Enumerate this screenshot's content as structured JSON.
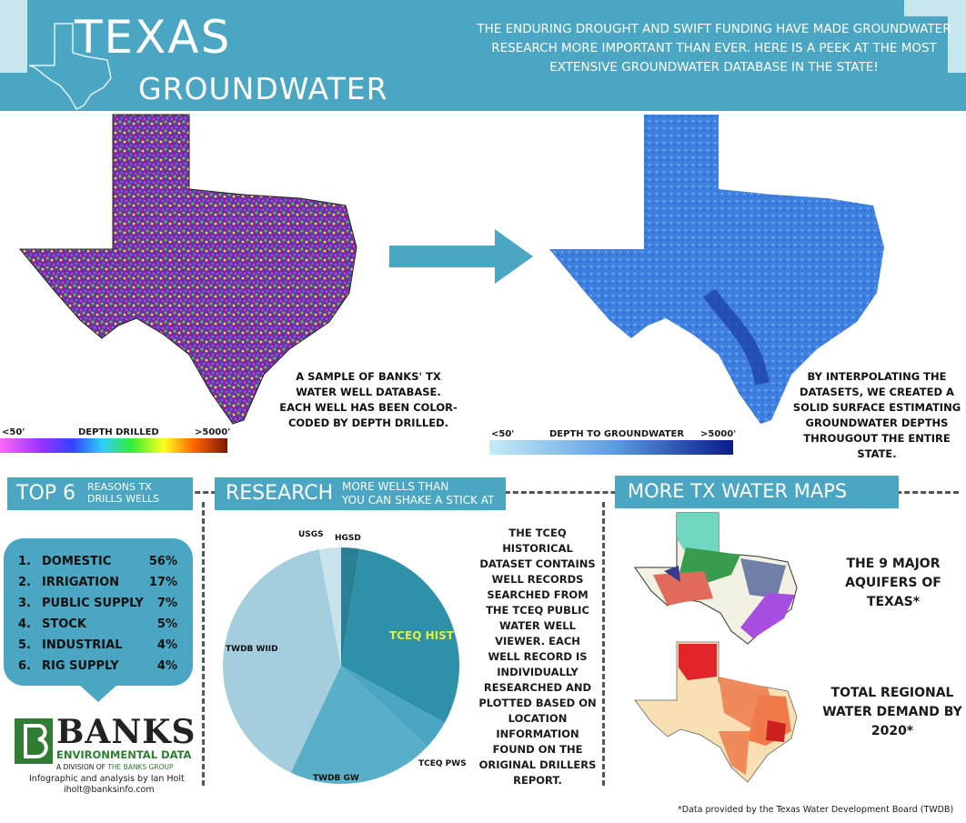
{
  "header": {
    "title_line1": "TEXAS",
    "title_line2": "GROUNDWATER",
    "intro": "THE ENDURING DROUGHT AND SWIFT FUNDING HAVE MADE GROUNDWATER RESEARCH MORE IMPORTANT THAN EVER. HERE IS A PEEK AT THE MOST EXTENSIVE GROUNDWATER DATABASE IN THE STATE!"
  },
  "colors": {
    "accent": "#4aa6c2",
    "accent_light": "#c8e6ee",
    "pie_dark": "#2e90a9",
    "pie_mid": "#59afc7",
    "pie_light": "#a4cedd",
    "highlight": "#e6ef3a"
  },
  "maps": {
    "left_caption": "A SAMPLE OF BANKS' TX WATER WELL DATABASE. EACH WELL HAS BEEN COLOR-CODED BY DEPTH DRILLED.",
    "left_scale": {
      "min": "<50'",
      "label": "DEPTH DRILLED",
      "max": ">5000'"
    },
    "right_caption": "BY INTERPOLATING THE DATASETS, WE CREATED A SOLID SURFACE ESTIMATING GROUNDWATER DEPTHS THROUGOUT THE ENTIRE STATE.",
    "right_scale": {
      "min": "<50'",
      "label": "DEPTH TO GROUNDWATER",
      "max": ">5000'"
    }
  },
  "reasons": {
    "title_big": "TOP 6",
    "title_small_1": "REASONS TX",
    "title_small_2": "DRILLS WELLS",
    "items": [
      {
        "num": "1.",
        "label": "DOMESTIC",
        "pct": "56%"
      },
      {
        "num": "2.",
        "label": "IRRIGATION",
        "pct": "17%"
      },
      {
        "num": "3.",
        "label": "PUBLIC SUPPLY",
        "pct": "7%"
      },
      {
        "num": "4.",
        "label": "STOCK",
        "pct": "5%"
      },
      {
        "num": "5.",
        "label": "INDUSTRIAL",
        "pct": "4%"
      },
      {
        "num": "6.",
        "label": "RIG SUPPLY",
        "pct": "4%"
      }
    ]
  },
  "branding": {
    "logo_name": "BANKS",
    "logo_sub1": "ENVIRONMENTAL DATA",
    "logo_sub2_prefix": "A DIVISION OF",
    "logo_sub2_name": "THE BANKS GROUP",
    "credit": "Infographic and analysis by Ian Holt",
    "email": "iholt@banksinfo.com"
  },
  "research": {
    "title_big": "RESEARCH",
    "title_small_1": "MORE WELLS THAN",
    "title_small_2": "YOU CAN SHAKE A STICK AT",
    "body": "THE TCEQ HISTORICAL DATASET CONTAINS WELL RECORDS SEARCHED FROM THE TCEQ PUBLIC WATER WELL VIEWER. EACH WELL RECORD IS INDIVIDUALLY RESEARCHED AND PLOTTED BASED ON LOCATION INFORMATION FOUND ON THE ORIGINAL DRILLERS REPORT."
  },
  "chart_data": {
    "type": "pie",
    "slices": [
      {
        "label": "HGSD",
        "value": 2.5
      },
      {
        "label": "TCEQ HIST",
        "value": 30.5
      },
      {
        "label": "TCEQ PWS",
        "value": 4.0
      },
      {
        "label": "TWDB GW",
        "value": 20.0
      },
      {
        "label": "TWDB WIID",
        "value": 40.0
      },
      {
        "label": "USGS",
        "value": 3.0
      }
    ]
  },
  "more_maps": {
    "title": "MORE TX WATER MAPS",
    "aquifers_caption": "THE 9 MAJOR AQUIFERS OF TEXAS*",
    "demand_caption": "TOTAL REGIONAL WATER DEMAND BY 2020*"
  },
  "footnote": "*Data provided by the Texas Water Development Board (TWDB)"
}
